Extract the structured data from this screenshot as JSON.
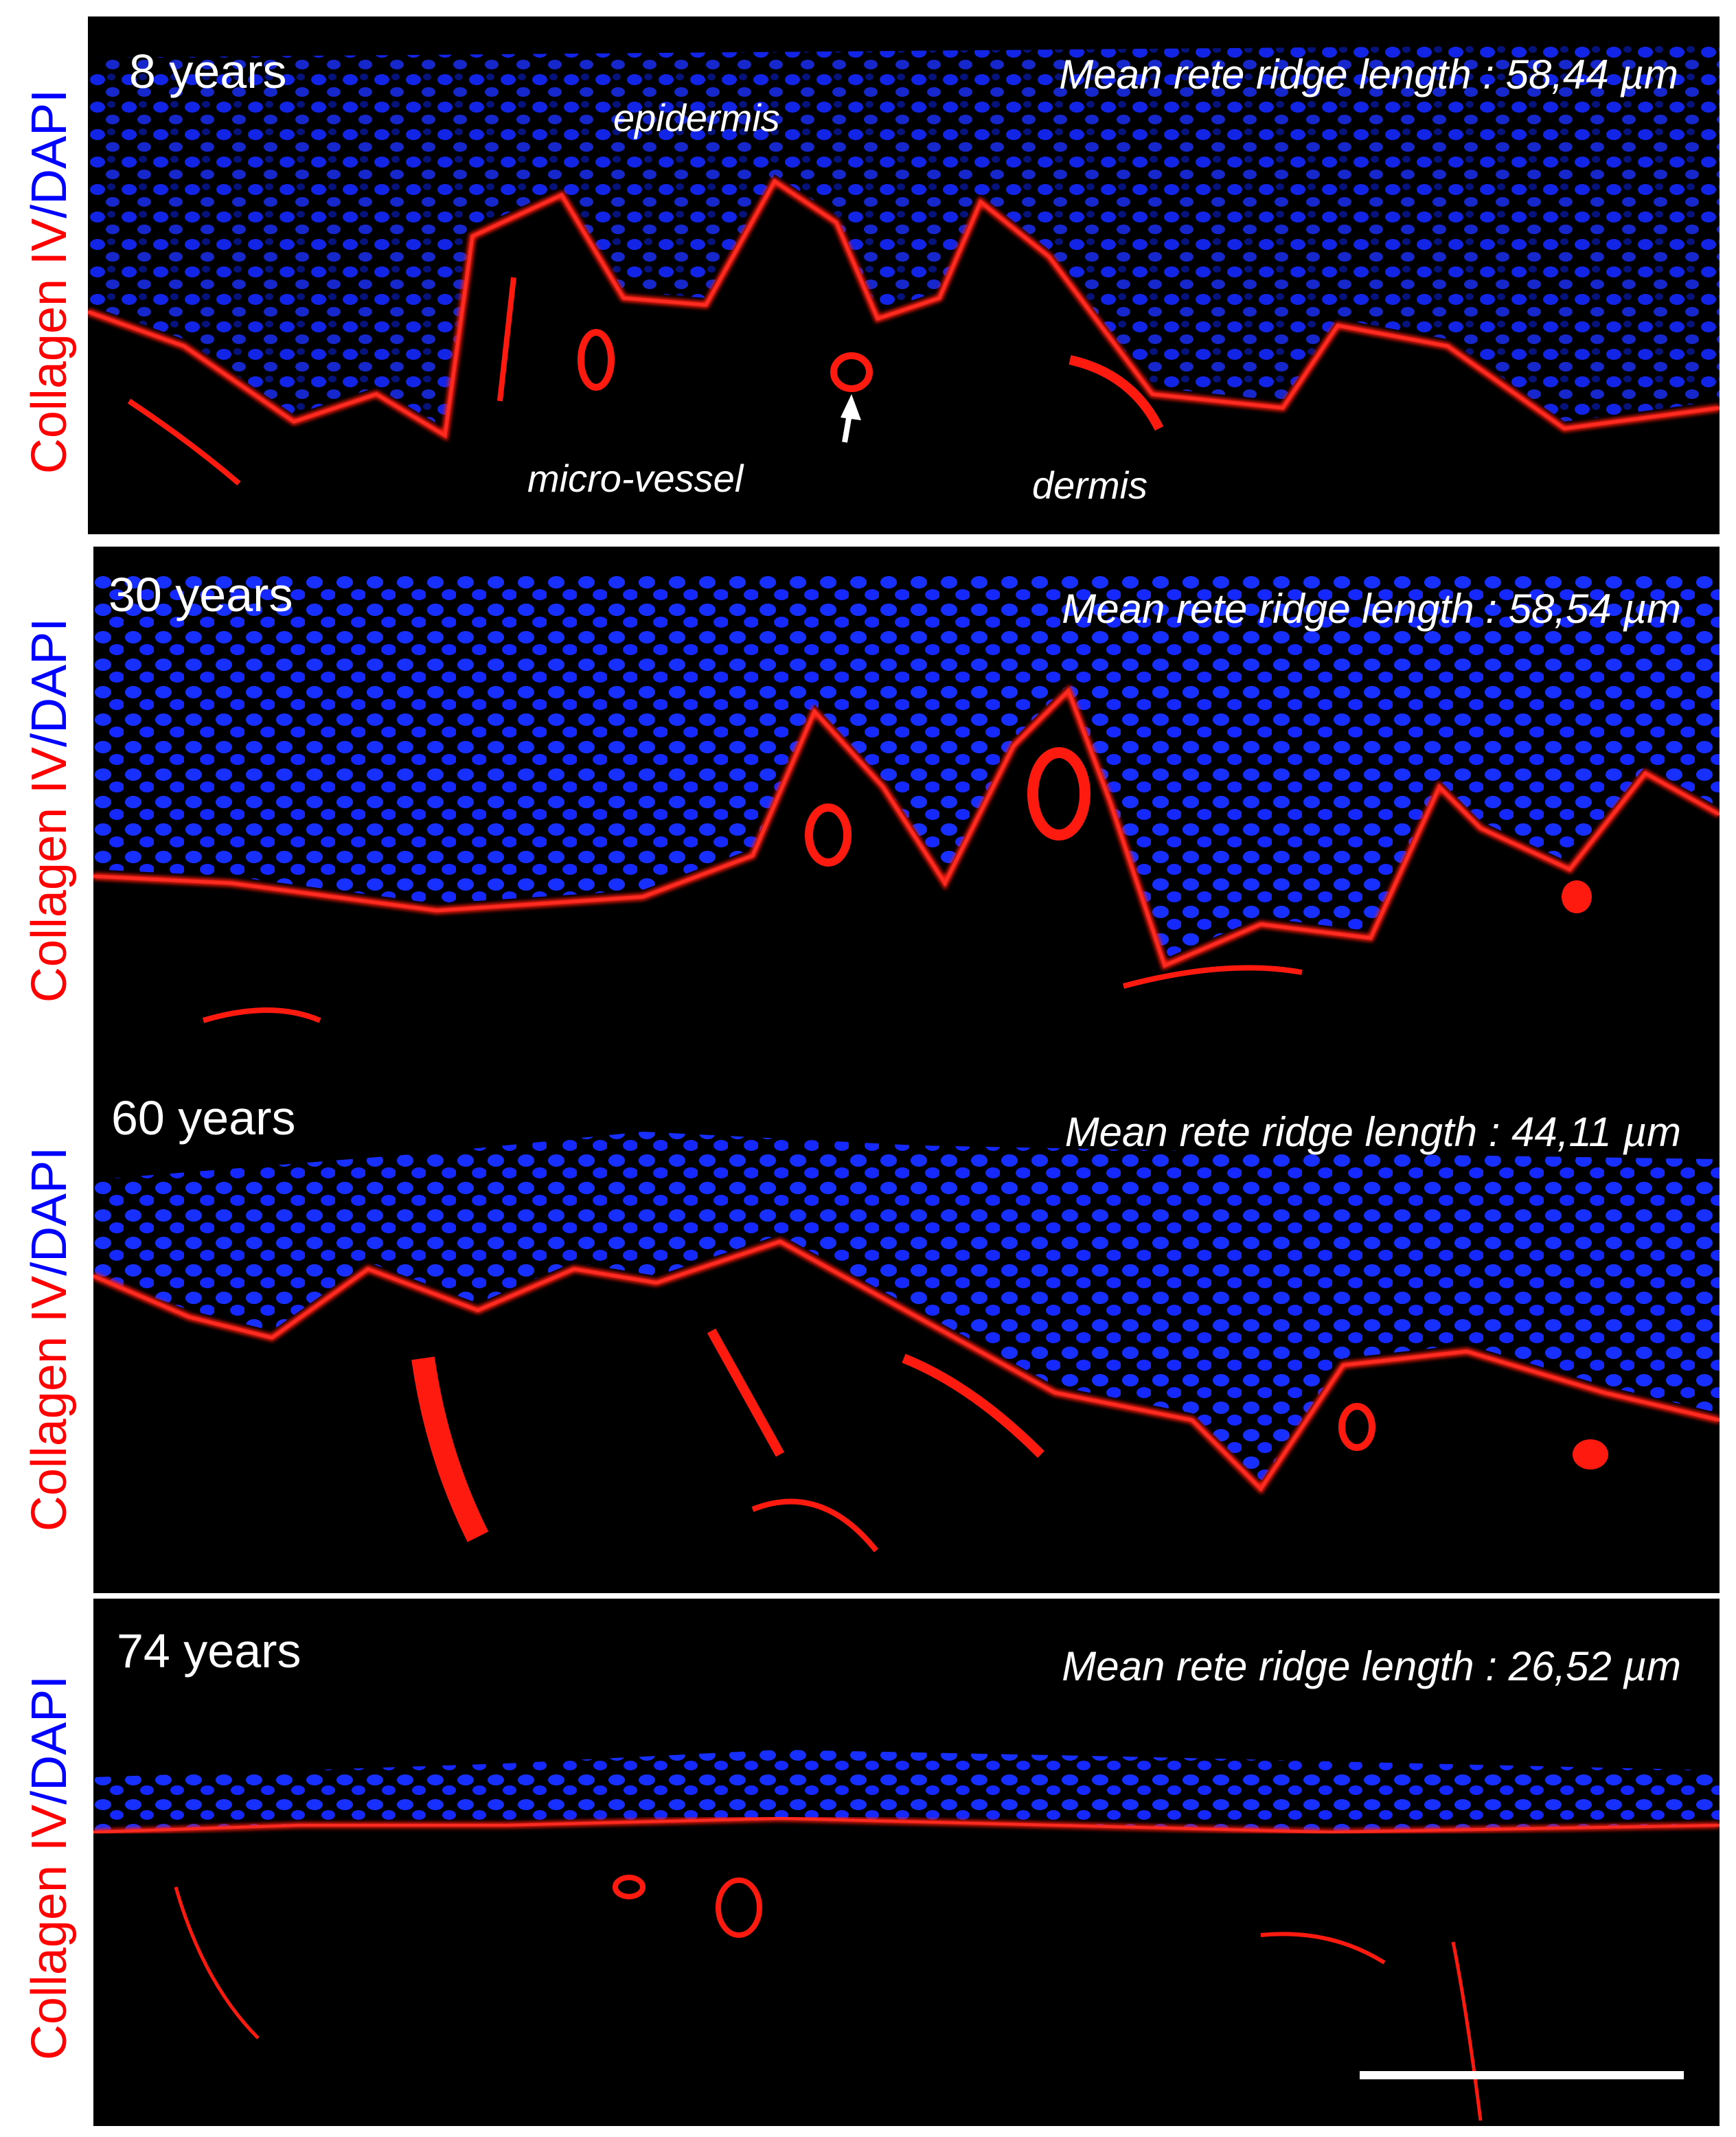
{
  "stain_label": {
    "collagen": "Collagen IV",
    "separator": "/",
    "dapi": "DAPI"
  },
  "colors": {
    "collagen": "#ff0000",
    "dapi": "#0000ff",
    "background": "#000000",
    "text": "#ffffff"
  },
  "panels": [
    {
      "age": "8 years",
      "rete_ridge": "Mean rete ridge length : 58,44 µm"
    },
    {
      "age": "30 years",
      "rete_ridge": "Mean rete ridge length : 58,54 µm"
    },
    {
      "age": "60 years",
      "rete_ridge": "Mean rete ridge length : 44,11 µm"
    },
    {
      "age": "74 years",
      "rete_ridge": "Mean rete ridge length : 26,52 µm"
    }
  ],
  "annotations": {
    "epidermis": "epidermis",
    "micro_vessel": "micro-vessel",
    "dermis": "dermis"
  }
}
